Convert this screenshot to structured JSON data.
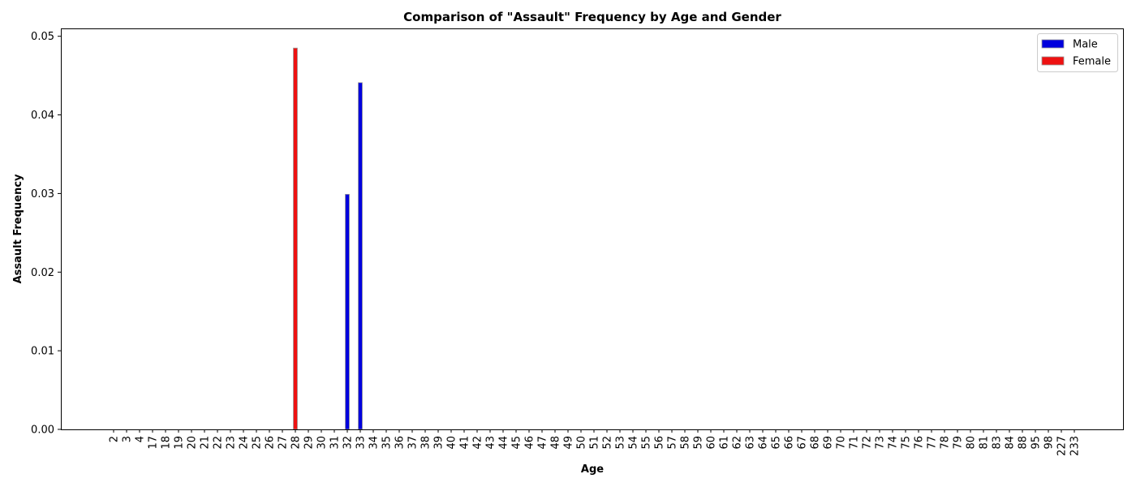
{
  "chart_data": {
    "type": "bar",
    "title": "Comparison of \"Assault\" Frequency by Age and Gender",
    "xlabel": "Age",
    "ylabel": "Assault Frequency",
    "ylim": [
      0,
      0.051
    ],
    "yticks": [
      "0.00",
      "0.01",
      "0.02",
      "0.03",
      "0.04",
      "0.05"
    ],
    "grid": false,
    "legend_position": "top-right",
    "categories": [
      "2",
      "3",
      "4",
      "17",
      "18",
      "19",
      "20",
      "21",
      "22",
      "23",
      "24",
      "25",
      "26",
      "27",
      "28",
      "29",
      "30",
      "31",
      "32",
      "33",
      "34",
      "35",
      "36",
      "37",
      "38",
      "39",
      "40",
      "41",
      "42",
      "43",
      "44",
      "45",
      "46",
      "47",
      "48",
      "49",
      "50",
      "51",
      "52",
      "53",
      "54",
      "55",
      "56",
      "57",
      "58",
      "59",
      "60",
      "61",
      "62",
      "63",
      "64",
      "65",
      "66",
      "67",
      "68",
      "69",
      "70",
      "71",
      "72",
      "73",
      "74",
      "75",
      "76",
      "77",
      "78",
      "79",
      "80",
      "81",
      "83",
      "84",
      "88",
      "95",
      "98",
      "227",
      "233"
    ],
    "series": [
      {
        "name": "Male",
        "color": "#0000dd",
        "values": [
          0,
          0,
          0,
          0,
          0,
          0,
          0,
          0,
          0,
          0,
          0,
          0,
          0,
          0,
          0,
          0,
          0,
          0,
          0.0299,
          0.0441,
          0,
          0,
          0,
          0,
          0,
          0,
          0,
          0,
          0,
          0,
          0,
          0,
          0,
          0,
          0,
          0,
          0,
          0,
          0,
          0,
          0,
          0,
          0,
          0,
          0,
          0,
          0,
          0,
          0,
          0,
          0,
          0,
          0,
          0,
          0,
          0,
          0,
          0,
          0,
          0,
          0,
          0,
          0,
          0,
          0,
          0,
          0,
          0,
          0,
          0,
          0,
          0,
          0,
          0,
          0
        ]
      },
      {
        "name": "Female",
        "color": "#ee1111",
        "values": [
          0,
          0,
          0,
          0,
          0,
          0,
          0,
          0,
          0,
          0,
          0,
          0,
          0,
          0,
          0.0485,
          0,
          0,
          0,
          0,
          0,
          0,
          0,
          0,
          0,
          0,
          0,
          0,
          0,
          0,
          0,
          0,
          0,
          0,
          0,
          0,
          0,
          0,
          0,
          0,
          0,
          0,
          0,
          0,
          0,
          0,
          0,
          0,
          0,
          0,
          0,
          0,
          0,
          0,
          0,
          0,
          0,
          0,
          0,
          0,
          0,
          0,
          0,
          0,
          0,
          0,
          0,
          0,
          0,
          0,
          0,
          0,
          0,
          0,
          0,
          0
        ]
      }
    ]
  }
}
